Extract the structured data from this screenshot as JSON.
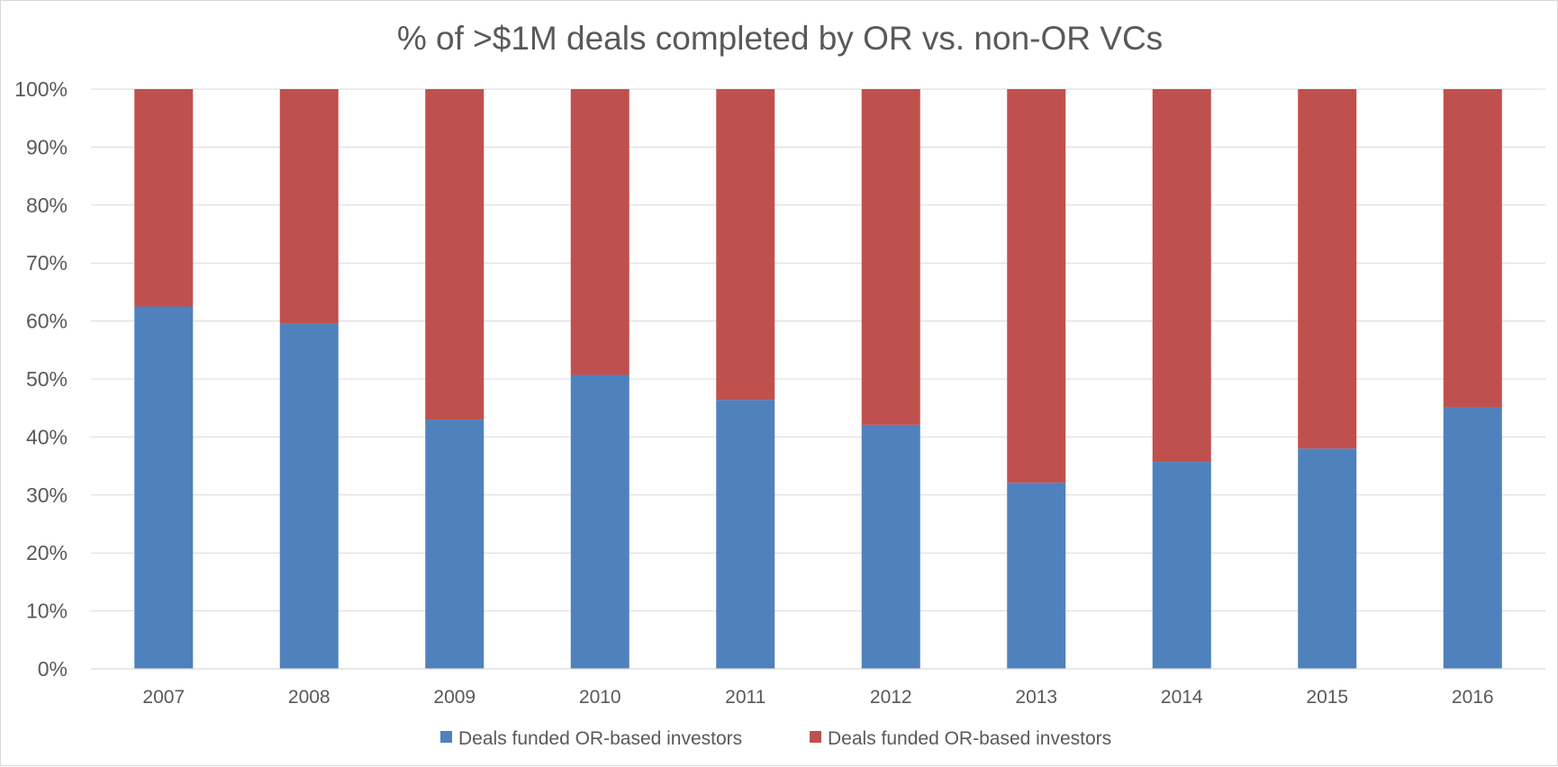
{
  "chart_data": {
    "type": "bar",
    "stacked": true,
    "title": "% of >$1M deals completed by OR vs. non-OR VCs",
    "xlabel": "",
    "ylabel": "",
    "ylim": [
      0,
      100
    ],
    "yticks": [
      "0%",
      "10%",
      "20%",
      "30%",
      "40%",
      "50%",
      "60%",
      "70%",
      "80%",
      "90%",
      "100%"
    ],
    "grid": true,
    "legend_position": "bottom",
    "categories": [
      "2007",
      "2008",
      "2009",
      "2010",
      "2011",
      "2012",
      "2013",
      "2014",
      "2015",
      "2016"
    ],
    "series": [
      {
        "name": "Deals funded OR-based investors",
        "color": "#4f81bd",
        "values": [
          62.5,
          59.5,
          43,
          50.7,
          46.4,
          42.1,
          32.1,
          35.7,
          38,
          45.1
        ]
      },
      {
        "name": "Deals funded OR-based investors",
        "color": "#c0504d",
        "values": [
          37.5,
          40.5,
          57,
          49.3,
          53.6,
          57.9,
          67.9,
          64.3,
          62,
          54.9
        ]
      }
    ]
  }
}
